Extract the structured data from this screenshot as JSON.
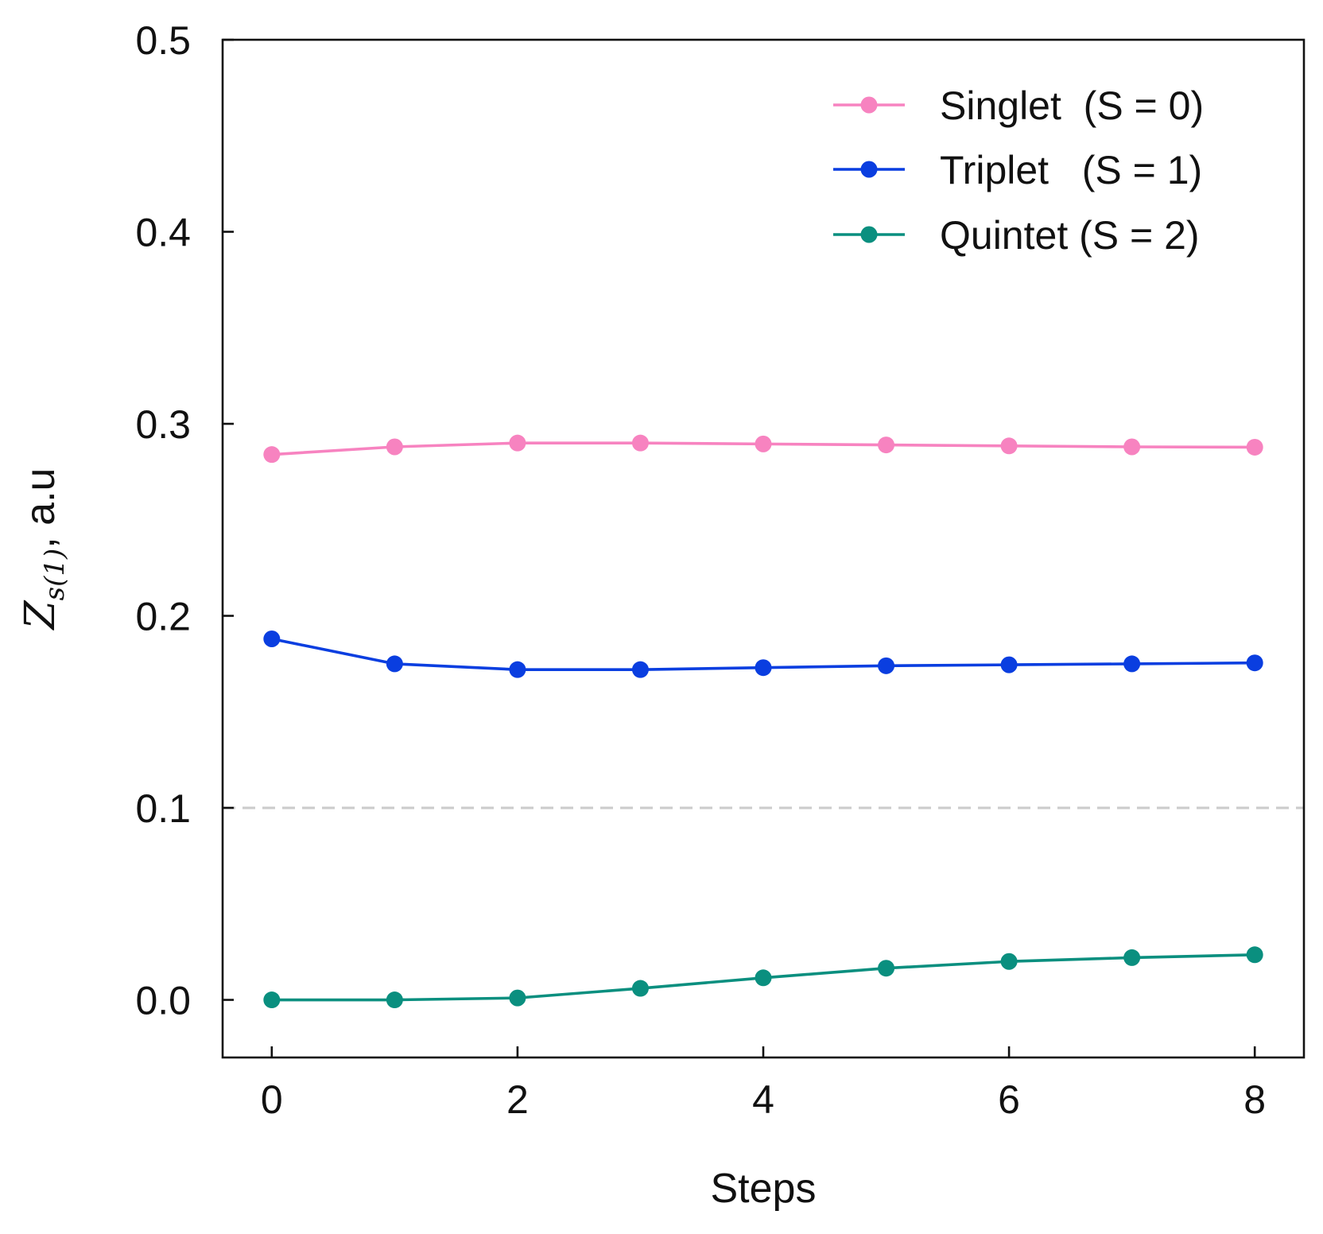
{
  "chart_data": {
    "type": "line",
    "xlabel": "Steps",
    "ylabel": {
      "symbol": "Z",
      "subscript": "s(1)",
      "suffix": ", a.u"
    },
    "xlim": [
      -0.4,
      8.4
    ],
    "ylim": [
      -0.03,
      0.5
    ],
    "xticks": [
      0,
      2,
      4,
      6,
      8
    ],
    "yticks": [
      0.0,
      0.1,
      0.2,
      0.3,
      0.4,
      0.5
    ],
    "xtick_labels": [
      "0",
      "2",
      "4",
      "6",
      "8"
    ],
    "ytick_labels": [
      "0.0",
      "0.1",
      "0.2",
      "0.3",
      "0.4",
      "0.5"
    ],
    "grid": false,
    "reference_line": {
      "y": 0.1,
      "style": "dashed",
      "color": "#cccccc"
    },
    "legend": {
      "position": "top-right"
    },
    "x": [
      0,
      1,
      2,
      3,
      4,
      5,
      6,
      7,
      8
    ],
    "series": [
      {
        "name": "Singlet  (S = 0)",
        "color": "#f783c0",
        "values": [
          0.284,
          0.288,
          0.29,
          0.29,
          0.2895,
          0.289,
          0.2885,
          0.288,
          0.2878
        ]
      },
      {
        "name": "Triplet   (S = 1)",
        "color": "#0a3ee0",
        "values": [
          0.188,
          0.175,
          0.172,
          0.172,
          0.173,
          0.174,
          0.1745,
          0.175,
          0.1755
        ]
      },
      {
        "name": "Quintet (S = 2)",
        "color": "#0a8f7f",
        "values": [
          0.0,
          0.0,
          0.001,
          0.006,
          0.0115,
          0.0165,
          0.02,
          0.022,
          0.0235
        ]
      }
    ]
  }
}
